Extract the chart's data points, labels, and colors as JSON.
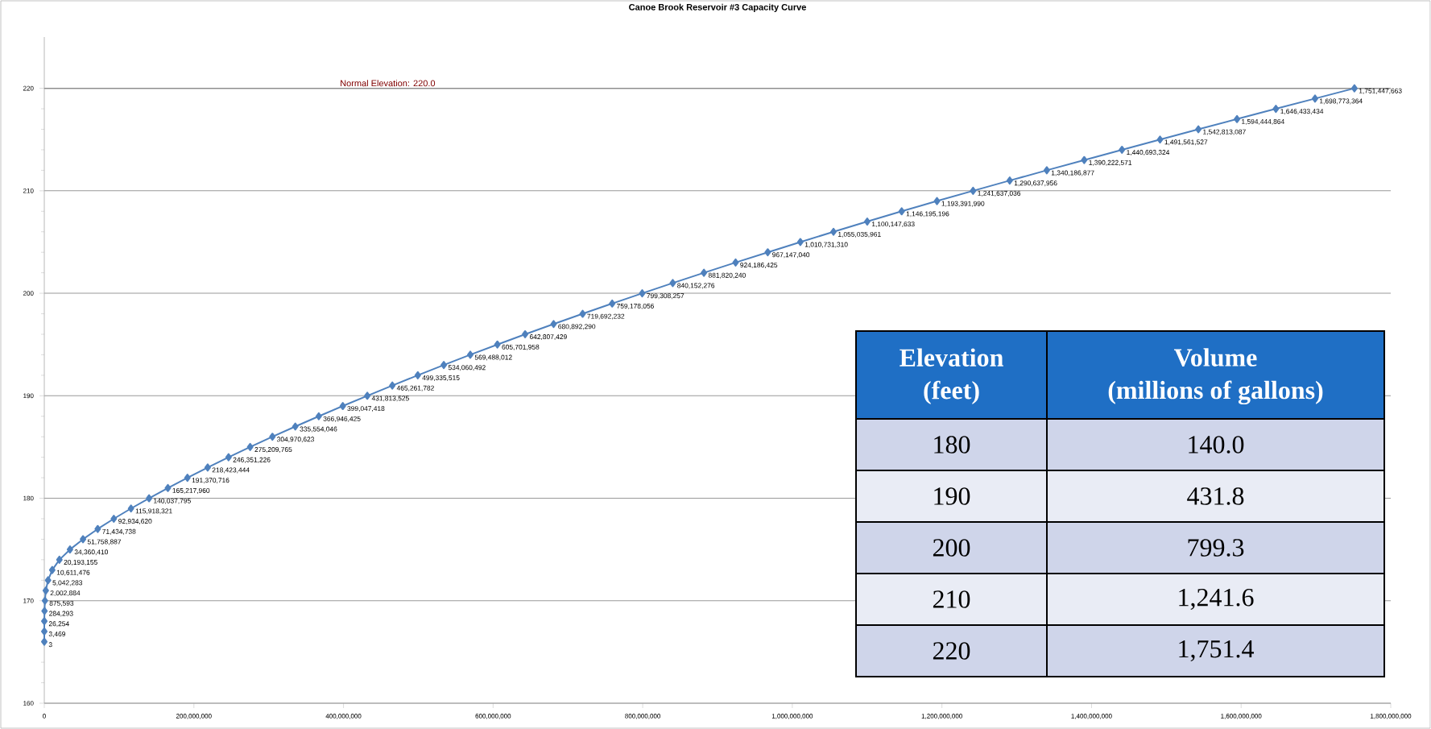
{
  "chart_data": {
    "type": "line",
    "title": "Canoe Brook Reservoir #3 Capacity Curve",
    "x": [
      3,
      3469,
      26254,
      284293,
      875593,
      2002884,
      5042283,
      10611476,
      20193155,
      34360410,
      51758887,
      71434738,
      92934620,
      115918321,
      140037795,
      165217960,
      191370716,
      218423444,
      246351226,
      275209765,
      304970623,
      335554046,
      366946425,
      399047418,
      431813525,
      465261782,
      499335515,
      534060492,
      569488012,
      605701958,
      642807429,
      680892290,
      719692232,
      759178056,
      799308257,
      840152276,
      881820240,
      924186425,
      967147040,
      1010731310,
      1055035961,
      1100147633,
      1146195196,
      1193391990,
      1241637036,
      1290637956,
      1340186877,
      1390222571,
      1440693324,
      1491561527,
      1542813087,
      1594444864,
      1646433434,
      1698773364,
      1751447663
    ],
    "values": [
      166,
      167,
      168,
      169,
      170,
      171,
      172,
      173,
      174,
      175,
      176,
      177,
      178,
      179,
      180,
      181,
      182,
      183,
      184,
      185,
      186,
      187,
      188,
      189,
      190,
      191,
      192,
      193,
      194,
      195,
      196,
      197,
      198,
      199,
      200,
      201,
      202,
      203,
      204,
      205,
      206,
      207,
      208,
      209,
      210,
      211,
      212,
      213,
      214,
      215,
      216,
      217,
      218,
      219,
      220
    ],
    "color": "#4f81bd",
    "marker": "diamond",
    "line_style": "solid",
    "grid": "y",
    "xlim": [
      0,
      1800000000
    ],
    "ylim": [
      160,
      225
    ],
    "xticks": [
      0,
      {
        "value": 200000000,
        "label": "200,000,000"
      },
      {
        "value": 400000000,
        "label": "400,000,000"
      },
      {
        "value": 600000000,
        "label": "600,000,000"
      },
      {
        "value": 800000000,
        "label": "800,000,000"
      },
      {
        "value": 1000000000,
        "label": "1,000,000,000"
      },
      {
        "value": 1200000000,
        "label": "1,200,000,000"
      },
      {
        "value": 1400000000,
        "label": "1,400,000,000"
      },
      {
        "value": 1600000000,
        "label": "1,600,000,000"
      },
      {
        "value": 1800000000,
        "label": "1,800,000,000"
      }
    ],
    "yticks": [
      160,
      170,
      180,
      190,
      200,
      210,
      220
    ],
    "ref_lines": [
      {
        "axis": "y",
        "value": 220,
        "label": "Normal Elevation: 220.0",
        "color": "#808080"
      }
    ],
    "annotations": [
      "Elevation",
      "(feet)",
      "Volume",
      "(millions of gallons)",
      "180",
      "140.0",
      "190",
      "431.8",
      "200",
      "799.3",
      "210",
      "1,241.6",
      "220",
      "1,751.4",
      {
        "text": "3",
        "x": 3,
        "y": 166
      },
      {
        "text": "3,469",
        "x": 3469,
        "y": 167
      },
      {
        "text": "26,254",
        "x": 26254,
        "y": 168
      },
      {
        "text": "284,293",
        "x": 284293,
        "y": 169
      },
      {
        "text": "875,593",
        "x": 875593,
        "y": 170
      },
      {
        "text": "2,002,884",
        "x": 2002884,
        "y": 171
      },
      {
        "text": "5,042,283",
        "x": 5042283,
        "y": 172
      },
      {
        "text": "10,611,476",
        "x": 10611476,
        "y": 173
      },
      {
        "text": "20,193,155",
        "x": 20193155,
        "y": 174
      },
      {
        "text": "34,360,410",
        "x": 34360410,
        "y": 175
      },
      {
        "text": "51,758,887",
        "x": 51758887,
        "y": 176
      },
      {
        "text": "71,434,738",
        "x": 71434738,
        "y": 177
      },
      {
        "text": "92,934,620",
        "x": 92934620,
        "y": 178
      },
      {
        "text": "115,918,321",
        "x": 115918321,
        "y": 179
      },
      {
        "text": "140,037,795",
        "x": 140037795,
        "y": 180
      },
      {
        "text": "165,217,960",
        "x": 165217960,
        "y": 181
      },
      {
        "text": "191,370,716",
        "x": 191370716,
        "y": 182
      },
      {
        "text": "218,423,444",
        "x": 218423444,
        "y": 183
      },
      {
        "text": "246,351,226",
        "x": 246351226,
        "y": 184
      },
      {
        "text": "275,209,765",
        "x": 275209765,
        "y": 185
      },
      {
        "text": "304,970,623",
        "x": 304970623,
        "y": 186
      },
      {
        "text": "335,554,046",
        "x": 335554046,
        "y": 187
      },
      {
        "text": "366,946,425",
        "x": 366946425,
        "y": 188
      },
      {
        "text": "399,047,418",
        "x": 399047418,
        "y": 189
      },
      {
        "text": "431,813,525",
        "x": 431813525,
        "y": 190
      },
      {
        "text": "465,261,782",
        "x": 465261782,
        "y": 191
      },
      {
        "text": "499,335,515",
        "x": 499335515,
        "y": 192
      },
      {
        "text": "534,060,492",
        "x": 534060492,
        "y": 193
      },
      {
        "text": "569,488,012",
        "x": 569488012,
        "y": 194
      },
      {
        "text": "605,701,958",
        "x": 605701958,
        "y": 195
      },
      {
        "text": "642,807,429",
        "x": 642807429,
        "y": 196
      },
      {
        "text": "680,892,290",
        "x": 680892290,
        "y": 197
      },
      {
        "text": "719,692,232",
        "x": 719692232,
        "y": 198
      },
      {
        "text": "759,178,056",
        "x": 759178056,
        "y": 199
      },
      {
        "text": "799,308,257",
        "x": 799308257,
        "y": 200
      },
      {
        "text": "840,152,276",
        "x": 840152276,
        "y": 201
      },
      {
        "text": "881,820,240",
        "x": 881820240,
        "y": 202
      },
      {
        "text": "924,186,425",
        "x": 924186425,
        "y": 203
      },
      {
        "text": "967,147,040",
        "x": 967147040,
        "y": 204
      },
      {
        "text": "1,010,731,310",
        "x": 1010731310,
        "y": 205
      },
      {
        "text": "1,055,035,961",
        "x": 1055035961,
        "y": 206
      },
      {
        "text": "1,100,147,633",
        "x": 1100147633,
        "y": 207
      },
      {
        "text": "1,146,195,196",
        "x": 1146195196,
        "y": 208
      },
      {
        "text": "1,193,391,990",
        "x": 1193391990,
        "y": 209
      },
      {
        "text": "1,241,637,036",
        "x": 1241637036,
        "y": 210
      },
      {
        "text": "1,290,637,956",
        "x": 1290637956,
        "y": 211
      },
      {
        "text": "1,340,186,877",
        "x": 1340186877,
        "y": 212
      },
      {
        "text": "1,390,222,571",
        "x": 1390222571,
        "y": 213
      },
      {
        "text": "1,440,693,324",
        "x": 1440693324,
        "y": 214
      },
      {
        "text": "1,491,561,527",
        "x": 1491561527,
        "y": 215
      },
      {
        "text": "1,542,813,087",
        "x": 1542813087,
        "y": 216
      },
      {
        "text": "1,594,444,864",
        "x": 1594444864,
        "y": 217
      },
      {
        "text": "1,646,433,434",
        "x": 1646433434,
        "y": 218
      },
      {
        "text": "1,698,773,364",
        "x": 1698773364,
        "y": 219
      },
      {
        "text": "1,751,447,663",
        "x": 1751447663,
        "y": 220
      }
    ]
  }
}
